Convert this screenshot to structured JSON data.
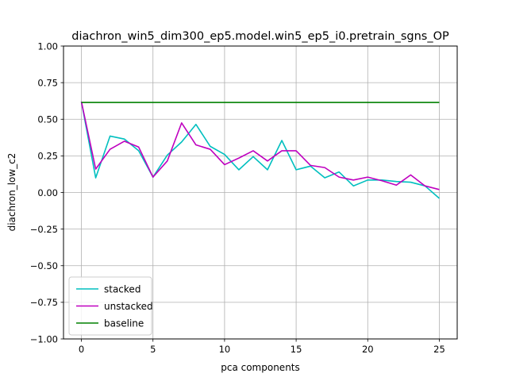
{
  "chart_data": {
    "type": "line",
    "title": "diachron_win5_dim300_ep5.model.win5_ep5_i0.pretrain_sgns_OP",
    "xlabel": "pca components",
    "ylabel": "diachron_low_c2",
    "xlim": [
      -1.25,
      26.25
    ],
    "ylim": [
      -1.0,
      1.0
    ],
    "xticks": [
      0,
      5,
      10,
      15,
      20,
      25
    ],
    "xtick_labels": [
      "0",
      "5",
      "10",
      "15",
      "20",
      "25"
    ],
    "yticks": [
      -1.0,
      -0.75,
      -0.5,
      -0.25,
      0.0,
      0.25,
      0.5,
      0.75,
      1.0
    ],
    "ytick_labels": [
      "−1.00",
      "−0.75",
      "−0.50",
      "−0.25",
      "0.00",
      "0.25",
      "0.50",
      "0.75",
      "1.00"
    ],
    "grid": true,
    "legend_position": "lower-left",
    "x": [
      0,
      1,
      2,
      3,
      4,
      5,
      6,
      7,
      8,
      9,
      10,
      11,
      12,
      13,
      14,
      15,
      16,
      17,
      18,
      19,
      20,
      21,
      22,
      23,
      24,
      25
    ],
    "series": [
      {
        "name": "stacked",
        "color": "#00bfbf",
        "values": [
          0.62,
          0.1,
          0.385,
          0.365,
          0.285,
          0.105,
          0.255,
          0.345,
          0.465,
          0.315,
          0.26,
          0.155,
          0.245,
          0.155,
          0.355,
          0.155,
          0.18,
          0.1,
          0.14,
          0.045,
          0.085,
          0.085,
          0.075,
          0.07,
          0.045,
          -0.04
        ]
      },
      {
        "name": "unstacked",
        "color": "#bf00bf",
        "values": [
          0.62,
          0.16,
          0.295,
          0.35,
          0.31,
          0.105,
          0.215,
          0.475,
          0.325,
          0.295,
          0.19,
          0.235,
          0.285,
          0.215,
          0.285,
          0.285,
          0.185,
          0.17,
          0.105,
          0.085,
          0.105,
          0.08,
          0.05,
          0.12,
          0.045,
          0.02
        ]
      },
      {
        "name": "baseline",
        "color": "#008000",
        "values": [
          0.615,
          0.615,
          0.615,
          0.615,
          0.615,
          0.615,
          0.615,
          0.615,
          0.615,
          0.615,
          0.615,
          0.615,
          0.615,
          0.615,
          0.615,
          0.615,
          0.615,
          0.615,
          0.615,
          0.615,
          0.615,
          0.615,
          0.615,
          0.615,
          0.615,
          0.615
        ]
      }
    ]
  }
}
